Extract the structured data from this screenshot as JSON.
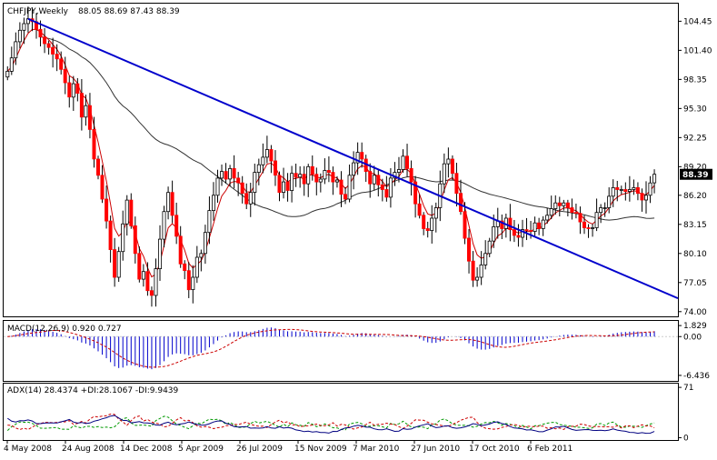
{
  "chart_data": {
    "type": "candlestick",
    "instrument": "CHFJPY,Weekly",
    "ohlc_label": "88.05 88.69 87.43 88.39",
    "last_price": "88.39",
    "colors": {
      "up": "#000000",
      "down": "#ff0000",
      "trendline": "#0000cc",
      "ma_fast": "#cc0000",
      "ma_slow": "#333333",
      "last_bg": "#000000"
    },
    "price_axis": {
      "ylim": [
        73.6,
        106.2
      ],
      "ticks": [
        104.45,
        101.4,
        98.35,
        95.3,
        92.25,
        89.2,
        86.2,
        83.15,
        80.1,
        77.05,
        74.0
      ],
      "tick_labels": [
        "104.45",
        "101.40",
        "98.35",
        "95.30",
        "92.25",
        "89.20",
        "86.20",
        "83.15",
        "80.10",
        "77.05",
        "74.00"
      ]
    },
    "x_labels": [
      "4 May 2008",
      "24 Aug 2008",
      "14 Dec 2008",
      "5 Apr 2009",
      "26 Jul 2009",
      "15 Nov 2009",
      "7 Mar 2010",
      "27 Jun 2010",
      "17 Oct 2010",
      "6 Feb 2011"
    ],
    "close_series": [
      99.2,
      100.6,
      102.3,
      103.5,
      104.2,
      104.7,
      104.4,
      103.6,
      102.8,
      102.1,
      101.7,
      101.0,
      100.5,
      99.4,
      98.0,
      96.5,
      97.9,
      96.9,
      94.4,
      95.6,
      93.1,
      90.0,
      88.3,
      85.8,
      83.5,
      80.5,
      77.6,
      80.3,
      83.2,
      85.7,
      83.0,
      80.1,
      77.4,
      78.2,
      76.2,
      75.7,
      78.5,
      81.6,
      84.5,
      86.5,
      84.1,
      81.9,
      79.0,
      78.3,
      76.3,
      77.6,
      79.7,
      80.1,
      82.3,
      84.6,
      86.2,
      88.0,
      88.7,
      87.9,
      89.0,
      88.0,
      87.5,
      86.4,
      85.3,
      86.5,
      88.6,
      89.4,
      90.2,
      91.0,
      89.8,
      88.3,
      86.5,
      87.6,
      86.7,
      88.5,
      88.1,
      88.4,
      87.4,
      89.2,
      88.4,
      87.6,
      87.9,
      88.8,
      88.6,
      87.6,
      87.8,
      86.3,
      85.8,
      88.3,
      89.6,
      90.7,
      90.0,
      88.7,
      87.4,
      88.3,
      87.3,
      86.8,
      86.0,
      88.0,
      88.6,
      88.9,
      90.3,
      89.0,
      87.6,
      85.3,
      84.1,
      82.7,
      82.5,
      83.8,
      84.9,
      87.4,
      89.5,
      90.0,
      88.5,
      86.4,
      84.5,
      81.7,
      79.3,
      77.3,
      77.6,
      78.9,
      80.1,
      81.4,
      82.9,
      83.5,
      82.7,
      83.8,
      82.6,
      82.0,
      81.8,
      82.6,
      82.5,
      82.4,
      83.3,
      82.7,
      83.6,
      84.1,
      84.8,
      85.4,
      85.1,
      85.4,
      84.9,
      84.4,
      84.3,
      83.4,
      82.8,
      82.7,
      82.8,
      84.4,
      84.9,
      84.9,
      86.1,
      87.0,
      86.8,
      86.8,
      86.6,
      86.8,
      87.0,
      86.4,
      85.7,
      86.2,
      87.5,
      88.4
    ],
    "trendline": {
      "from_index": 5,
      "from_price": 104.7,
      "to_price": 75.4
    },
    "macd": {
      "label": "MACD(12,26,9) 0.920 0.727",
      "ylim": [
        -7.2,
        2.3
      ],
      "ticks": [
        1.829,
        0.0,
        -6.436
      ],
      "tick_labels": [
        "1.829",
        "0.00",
        "-6.436"
      ],
      "line_color": "#0000cc",
      "signal_color": "#cc0000"
    },
    "adx": {
      "label": "ADX(14) 28.4374 +DI:28.1067 -DI:9.9439",
      "ylim": [
        -2,
        75
      ],
      "ticks": [
        71,
        0
      ],
      "tick_labels": [
        "71",
        "0"
      ],
      "adx_color": "#000080",
      "plus_di_color": "#009900",
      "minus_di_color": "#cc0000"
    }
  }
}
